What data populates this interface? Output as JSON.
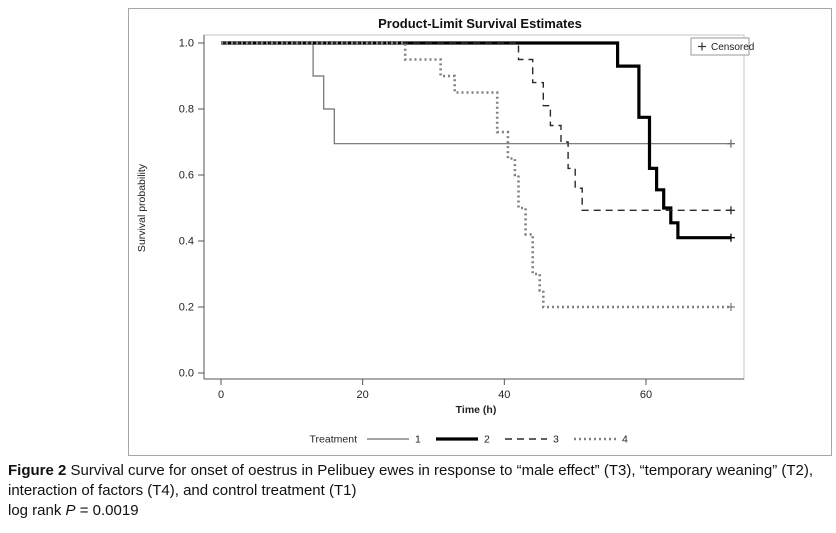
{
  "chart_data": {
    "type": "line",
    "subtype": "kaplan-meier-step",
    "title": "Product-Limit Survival Estimates",
    "xlabel": "Time (h)",
    "ylabel": "Survival probability",
    "xlim": [
      -2,
      74
    ],
    "ylim": [
      0,
      1
    ],
    "xticks": [
      0,
      20,
      40,
      60
    ],
    "yticks": [
      0,
      0.2,
      0.4,
      0.6,
      0.8,
      1
    ],
    "grid": false,
    "censored_marker": "+",
    "censored_legend_label": "Censored",
    "legend_title": "Treatment",
    "legend_position": "bottom",
    "series": [
      {
        "name": "1",
        "style": "thin-solid",
        "color": "#6e6e6e",
        "width": 1.2,
        "dash": "",
        "points": [
          [
            0,
            1
          ],
          [
            13,
            1
          ],
          [
            13,
            0.9
          ],
          [
            14.5,
            0.9
          ],
          [
            14.5,
            0.8
          ],
          [
            16,
            0.8
          ],
          [
            16,
            0.695
          ],
          [
            72,
            0.695
          ]
        ],
        "censored": [
          [
            72,
            0.695
          ]
        ]
      },
      {
        "name": "2",
        "style": "thick-solid",
        "color": "#000000",
        "width": 3.2,
        "dash": "",
        "points": [
          [
            0,
            1
          ],
          [
            56,
            1
          ],
          [
            56,
            0.93
          ],
          [
            59,
            0.93
          ],
          [
            59,
            0.775
          ],
          [
            60.5,
            0.775
          ],
          [
            60.5,
            0.62
          ],
          [
            61.5,
            0.62
          ],
          [
            61.5,
            0.555
          ],
          [
            62.5,
            0.555
          ],
          [
            62.5,
            0.5
          ],
          [
            63.5,
            0.5
          ],
          [
            63.5,
            0.455
          ],
          [
            64.5,
            0.455
          ],
          [
            64.5,
            0.41
          ],
          [
            72,
            0.41
          ]
        ],
        "censored": [
          [
            72,
            0.41
          ]
        ]
      },
      {
        "name": "3",
        "style": "dashed",
        "color": "#2a2a2a",
        "width": 1.4,
        "dash": "7,5",
        "points": [
          [
            0,
            1
          ],
          [
            42,
            1
          ],
          [
            42,
            0.95
          ],
          [
            44,
            0.95
          ],
          [
            44,
            0.88
          ],
          [
            45.5,
            0.88
          ],
          [
            45.5,
            0.81
          ],
          [
            46.5,
            0.81
          ],
          [
            46.5,
            0.75
          ],
          [
            48,
            0.75
          ],
          [
            48,
            0.7
          ],
          [
            49,
            0.7
          ],
          [
            49,
            0.62
          ],
          [
            50,
            0.62
          ],
          [
            50,
            0.56
          ],
          [
            51,
            0.56
          ],
          [
            51,
            0.493
          ],
          [
            72,
            0.493
          ]
        ],
        "censored": [
          [
            72,
            0.493
          ]
        ]
      },
      {
        "name": "4",
        "style": "dotted",
        "color": "#808080",
        "width": 2.6,
        "dash": "2,3",
        "points": [
          [
            0,
            1
          ],
          [
            26,
            1
          ],
          [
            26,
            0.95
          ],
          [
            31,
            0.95
          ],
          [
            31,
            0.9
          ],
          [
            33,
            0.9
          ],
          [
            33,
            0.85
          ],
          [
            39,
            0.85
          ],
          [
            39,
            0.73
          ],
          [
            40.5,
            0.73
          ],
          [
            40.5,
            0.65
          ],
          [
            41.5,
            0.65
          ],
          [
            41.5,
            0.6
          ],
          [
            42,
            0.6
          ],
          [
            42,
            0.5
          ],
          [
            43,
            0.5
          ],
          [
            43,
            0.42
          ],
          [
            44,
            0.42
          ],
          [
            44,
            0.3
          ],
          [
            45,
            0.3
          ],
          [
            45,
            0.25
          ],
          [
            45.5,
            0.25
          ],
          [
            45.5,
            0.2
          ],
          [
            72,
            0.2
          ]
        ],
        "censored": [
          [
            72,
            0.2
          ]
        ]
      }
    ]
  },
  "caption": {
    "figure_label": "Figure 2",
    "text": "Survival curve for onset of oestrus in Pelibuey ewes in response to “male effect” (T3), “temporary weaning” (T2), interaction of factors (T4), and control treatment (T1)",
    "logrank_prefix": "log rank ",
    "logrank_symbol": "P",
    "logrank_value": " = 0.0019"
  }
}
